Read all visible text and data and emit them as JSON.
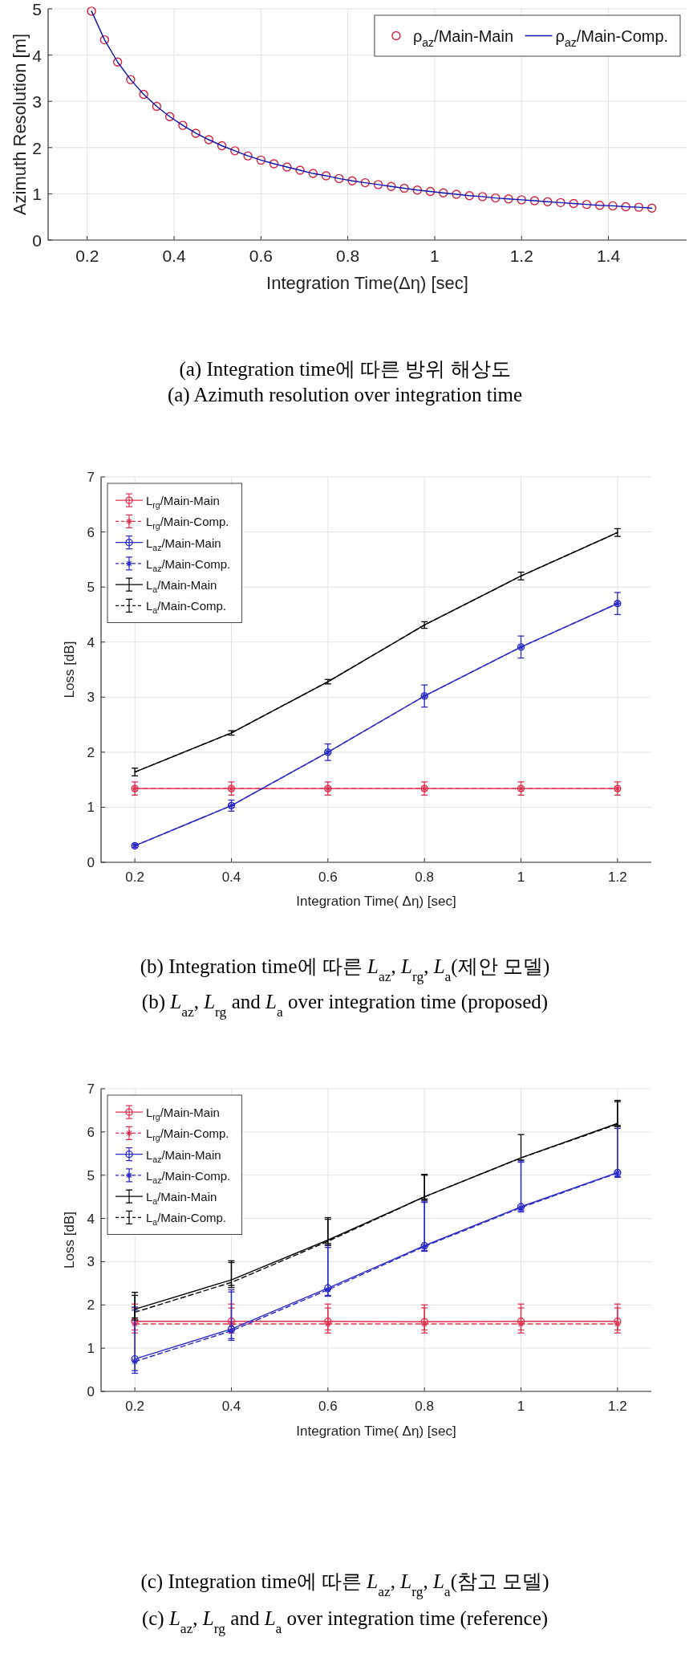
{
  "chart_data": [
    {
      "type": "line",
      "xlabel": "Integration Time(Δη) [sec]",
      "ylabel": "Azimuth Resolution [m]",
      "title": "(a) Integration time에 따른 방위 해상도",
      "subtitle": "(a) Azimuth resolution over integration time",
      "x": [
        0.21,
        0.24,
        0.27,
        0.3,
        0.33,
        0.36,
        0.39,
        0.42,
        0.45,
        0.48,
        0.51,
        0.54,
        0.57,
        0.6,
        0.63,
        0.66,
        0.69,
        0.72,
        0.75,
        0.78,
        0.81,
        0.84,
        0.87,
        0.9,
        0.93,
        0.96,
        0.99,
        1.02,
        1.05,
        1.08,
        1.11,
        1.14,
        1.17,
        1.2,
        1.23,
        1.26,
        1.29,
        1.32,
        1.35,
        1.38,
        1.41,
        1.44,
        1.47,
        1.5
      ],
      "series": [
        {
          "name": "ρ$_{az}$/Main-Main",
          "type": "scatter",
          "marker": "circle",
          "color": "#d0203c",
          "values": [
            4.95,
            4.33,
            3.85,
            3.47,
            3.15,
            2.89,
            2.67,
            2.48,
            2.31,
            2.17,
            2.04,
            1.93,
            1.82,
            1.73,
            1.65,
            1.58,
            1.51,
            1.44,
            1.39,
            1.33,
            1.28,
            1.24,
            1.2,
            1.16,
            1.12,
            1.08,
            1.05,
            1.02,
            0.99,
            0.96,
            0.94,
            0.91,
            0.89,
            0.87,
            0.85,
            0.83,
            0.81,
            0.79,
            0.77,
            0.75,
            0.74,
            0.72,
            0.71,
            0.69
          ]
        },
        {
          "name": "ρ$_{az}$/Main-Comp.",
          "type": "line",
          "color": "#0a14b4",
          "values": [
            4.95,
            4.33,
            3.85,
            3.47,
            3.15,
            2.89,
            2.67,
            2.48,
            2.31,
            2.17,
            2.04,
            1.93,
            1.82,
            1.73,
            1.65,
            1.58,
            1.51,
            1.44,
            1.39,
            1.33,
            1.28,
            1.24,
            1.2,
            1.16,
            1.12,
            1.08,
            1.05,
            1.02,
            0.99,
            0.96,
            0.94,
            0.91,
            0.89,
            0.87,
            0.85,
            0.83,
            0.81,
            0.79,
            0.77,
            0.75,
            0.74,
            0.72,
            0.71,
            0.69
          ]
        }
      ],
      "xlim": [
        0.11,
        1.58
      ],
      "ylim": [
        0,
        5
      ],
      "xticks": [
        0.2,
        0.4,
        0.6,
        0.8,
        1,
        1.2,
        1.4
      ],
      "yticks": [
        0,
        1,
        2,
        3,
        4,
        5
      ],
      "grid": true,
      "legend": "top right"
    },
    {
      "type": "line",
      "xlabel": "Integration Time( Δη) [sec]",
      "ylabel": "Loss [dB]",
      "title": "(b) Integration time에 따른 *L*$_{az}$, *L*$_{rg}$, *L*$_{a}$(제안 모델)",
      "subtitle": "(b) *L*$_{az}$, *L*$_{rg}$ and *L*$_{a}$ over integration time (proposed)",
      "x": [
        0.2,
        0.4,
        0.6,
        0.8,
        1,
        1.2
      ],
      "series": [
        {
          "name": "L$_{rg}$/Main-Main",
          "color": "#e0304e",
          "marker": "circle",
          "line_style": "solid",
          "values": [
            1.34,
            1.34,
            1.34,
            1.34,
            1.34,
            1.34
          ],
          "errors": [
            0.12,
            0.12,
            0.12,
            0.12,
            0.12,
            0.12
          ]
        },
        {
          "name": "L$_{rg}$/Main-Comp.",
          "color": "#e0304e",
          "marker": "cross",
          "line_style": "dashed",
          "values": [
            1.34,
            1.34,
            1.34,
            1.34,
            1.34,
            1.34
          ],
          "errors": [
            0.12,
            0.12,
            0.12,
            0.12,
            0.12,
            0.12
          ]
        },
        {
          "name": "L$_{az}$/Main-Main",
          "color": "#2a2ac8",
          "marker": "circle",
          "line_style": "solid",
          "values": [
            0.3,
            1.03,
            2.0,
            3.02,
            3.91,
            4.7
          ],
          "errors": [
            0.03,
            0.1,
            0.15,
            0.2,
            0.2,
            0.2
          ]
        },
        {
          "name": "L$_{az}$/Main-Comp.",
          "color": "#2a2ac8",
          "marker": "cross",
          "line_style": "dashed",
          "values": [
            0.3,
            1.03,
            2.0,
            3.02,
            3.91,
            4.7
          ],
          "errors": [
            0.03,
            0.1,
            0.15,
            0.2,
            0.2,
            0.2
          ]
        },
        {
          "name": "L$_{a}$/Main-Main",
          "color": "#000000",
          "marker": "none",
          "line_style": "solid",
          "values": [
            1.64,
            2.35,
            3.28,
            4.31,
            5.2,
            5.99
          ],
          "errors": [
            0.07,
            0.04,
            0.04,
            0.06,
            0.07,
            0.07
          ]
        },
        {
          "name": "L$_{a}$/Main-Comp.",
          "color": "#000000",
          "marker": "none",
          "line_style": "dashed",
          "values": [
            1.64,
            2.35,
            3.28,
            4.31,
            5.2,
            5.99
          ],
          "errors": [
            0.07,
            0.04,
            0.04,
            0.06,
            0.07,
            0.07
          ]
        }
      ],
      "xlim": [
        0.13,
        1.27
      ],
      "ylim": [
        0,
        7
      ],
      "xticks": [
        0.2,
        0.4,
        0.6,
        0.8,
        1,
        1.2
      ],
      "yticks": [
        0,
        1,
        2,
        3,
        4,
        5,
        6,
        7
      ],
      "grid": true,
      "legend": "top left"
    },
    {
      "type": "line",
      "xlabel": "Integration Time( Δη) [sec]",
      "ylabel": "Loss [dB]",
      "title": "(c) Integration time에 따른 *L*$_{az}$, *L*$_{rg}$, *L*$_{a}$(참고 모델)",
      "subtitle": "(c) *L*$_{az}$, *L*$_{rg}$ and *L*$_{a}$ over integration time (reference)",
      "x": [
        0.2,
        0.4,
        0.6,
        0.8,
        1,
        1.2
      ],
      "series": [
        {
          "name": "L$_{rg}$/Main-Main",
          "color": "#e0304e",
          "marker": "circle",
          "line_style": "solid",
          "values": [
            1.62,
            1.62,
            1.62,
            1.61,
            1.62,
            1.62
          ],
          "errors": [
            [
              1.42,
              2.02
            ],
            [
              1.42,
              2.02
            ],
            [
              1.42,
              2.02
            ],
            [
              1.42,
              2.0
            ],
            [
              1.42,
              2.02
            ],
            [
              1.42,
              2.02
            ]
          ]
        },
        {
          "name": "L$_{rg}$/Main-Comp.",
          "color": "#e0304e",
          "marker": "cross",
          "line_style": "dashed",
          "values": [
            1.56,
            1.56,
            1.56,
            1.56,
            1.56,
            1.56
          ],
          "errors": [
            [
              1.35,
              1.93
            ],
            [
              1.35,
              1.93
            ],
            [
              1.35,
              1.93
            ],
            [
              1.35,
              1.93
            ],
            [
              1.35,
              1.93
            ],
            [
              1.35,
              1.93
            ]
          ]
        },
        {
          "name": "L$_{az}$/Main-Main",
          "color": "#2a2ac8",
          "marker": "circle",
          "line_style": "solid",
          "values": [
            0.75,
            1.44,
            2.39,
            3.37,
            4.27,
            5.06
          ],
          "errors": [
            [
              0.48,
              1.95
            ],
            [
              1.22,
              2.35
            ],
            [
              2.22,
              3.38
            ],
            [
              3.26,
              4.4
            ],
            [
              4.18,
              5.33
            ],
            [
              4.97,
              6.12
            ]
          ]
        },
        {
          "name": "L$_{az}$/Main-Comp.",
          "color": "#2a2ac8",
          "marker": "cross",
          "line_style": "dashed",
          "values": [
            0.69,
            1.4,
            2.35,
            3.35,
            4.25,
            5.05
          ],
          "errors": [
            [
              0.42,
              1.88
            ],
            [
              1.18,
              2.3
            ],
            [
              2.2,
              3.33
            ],
            [
              3.24,
              4.37
            ],
            [
              4.15,
              5.3
            ],
            [
              4.95,
              6.08
            ]
          ]
        },
        {
          "name": "L$_{a}$/Main-Main",
          "color": "#000000",
          "marker": "none",
          "line_style": "solid",
          "values": [
            1.9,
            2.58,
            3.5,
            4.5,
            5.4,
            6.2
          ],
          "errors": [
            [
              1.7,
              2.29
            ],
            [
              2.45,
              3.02
            ],
            [
              3.42,
              4.02
            ],
            [
              4.45,
              5.02
            ],
            [
              5.35,
              5.94
            ],
            [
              6.15,
              6.73
            ]
          ]
        },
        {
          "name": "L$_{a}$/Main-Comp.",
          "color": "#000000",
          "marker": "none",
          "line_style": "dashed",
          "values": [
            1.83,
            2.52,
            3.47,
            4.5,
            5.4,
            6.18
          ],
          "errors": [
            [
              1.65,
              2.22
            ],
            [
              2.4,
              2.98
            ],
            [
              3.38,
              3.98
            ],
            [
              4.42,
              5.0
            ],
            [
              5.35,
              5.94
            ],
            [
              6.12,
              6.7
            ]
          ]
        }
      ],
      "xlim": [
        0.13,
        1.27
      ],
      "ylim": [
        0,
        7
      ],
      "xticks": [
        0.2,
        0.4,
        0.6,
        0.8,
        1,
        1.2
      ],
      "yticks": [
        0,
        1,
        2,
        3,
        4,
        5,
        6,
        7
      ],
      "grid": true,
      "legend": "top left"
    }
  ]
}
